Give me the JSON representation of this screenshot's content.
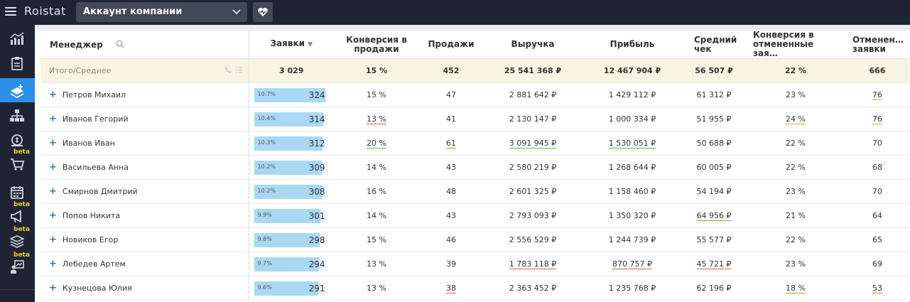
{
  "app": {
    "logo": "Roistat",
    "account": "Аккаунт компании"
  },
  "sidebar": {
    "items": [
      {
        "icon": "analytics-chart-icon",
        "beta": ""
      },
      {
        "icon": "clipboard-icon",
        "beta": ""
      },
      {
        "icon": "layers-add-icon",
        "beta": "",
        "active": true
      },
      {
        "icon": "org-structure-icon",
        "beta": ""
      },
      {
        "icon": "money-bag-icon",
        "beta": ""
      },
      {
        "icon": "cart-icon",
        "beta": "beta"
      },
      {
        "icon": "calendar-icon",
        "beta": ""
      },
      {
        "icon": "megaphone-icon",
        "beta": "beta"
      },
      {
        "icon": "stack-icon",
        "beta": "beta"
      },
      {
        "icon": "person-board-icon",
        "beta": "beta"
      }
    ]
  },
  "table": {
    "columns": [
      "Менеджер",
      "Заявки",
      "Конверсия в продажи",
      "Продажи",
      "Выручка",
      "Прибыль",
      "Средний чек",
      "Конверсия в отмененные зая…",
      "Отменен… заявки"
    ],
    "summary": {
      "label": "Итого/Среднее",
      "requests": "3 029",
      "conv": "15 %",
      "sales": "452",
      "revenue": "25 541 368 ₽",
      "profit": "12 467 904 ₽",
      "avg": "56 507 ₽",
      "cancel_conv": "22 %",
      "cancelled": "666"
    },
    "rows": [
      {
        "name": "Петров Михаил",
        "pct": "10.7%",
        "share": 10.7,
        "requests": "324",
        "conv": "15 %",
        "conv_u": "",
        "sales": "47",
        "sales_u": "",
        "revenue": "2 881 642 ₽",
        "revenue_u": "",
        "profit": "1 429 112 ₽",
        "profit_u": "",
        "avg": "61 312 ₽",
        "avg_u": "",
        "cancel_conv": "23 %",
        "cancel_conv_u": "",
        "cancelled": "76",
        "cancelled_u": "o"
      },
      {
        "name": "Иванов Гегорий",
        "pct": "10.4%",
        "share": 10.4,
        "requests": "314",
        "conv": "13 %",
        "conv_u": "r",
        "sales": "41",
        "sales_u": "",
        "revenue": "2 130 147 ₽",
        "revenue_u": "",
        "profit": "1 000 334 ₽",
        "profit_u": "",
        "avg": "51 955 ₽",
        "avg_u": "",
        "cancel_conv": "24 %",
        "cancel_conv_u": "o",
        "cancelled": "76",
        "cancelled_u": "o"
      },
      {
        "name": "Иванов Иван",
        "pct": "10.3%",
        "share": 10.3,
        "requests": "312",
        "conv": "20 %",
        "conv_u": "g",
        "sales": "61",
        "sales_u": "g",
        "revenue": "3 091 945 ₽",
        "revenue_u": "g",
        "profit": "1 530 051 ₽",
        "profit_u": "g",
        "avg": "50 688 ₽",
        "avg_u": "",
        "cancel_conv": "22 %",
        "cancel_conv_u": "",
        "cancelled": "70",
        "cancelled_u": ""
      },
      {
        "name": "Васильева Анна",
        "pct": "10.2%",
        "share": 10.2,
        "requests": "309",
        "conv": "14 %",
        "conv_u": "",
        "sales": "43",
        "sales_u": "",
        "revenue": "2 580 219 ₽",
        "revenue_u": "",
        "profit": "1 268 644 ₽",
        "profit_u": "",
        "avg": "60 005 ₽",
        "avg_u": "",
        "cancel_conv": "22 %",
        "cancel_conv_u": "",
        "cancelled": "68",
        "cancelled_u": ""
      },
      {
        "name": "Смирнов Дмитрий",
        "pct": "10.2%",
        "share": 10.2,
        "requests": "308",
        "conv": "16 %",
        "conv_u": "",
        "sales": "48",
        "sales_u": "",
        "revenue": "2 601 325 ₽",
        "revenue_u": "",
        "profit": "1 158 460 ₽",
        "profit_u": "",
        "avg": "54 194 ₽",
        "avg_u": "",
        "cancel_conv": "23 %",
        "cancel_conv_u": "",
        "cancelled": "70",
        "cancelled_u": ""
      },
      {
        "name": "Попов Никита",
        "pct": "9.9%",
        "share": 9.9,
        "requests": "301",
        "conv": "14 %",
        "conv_u": "",
        "sales": "43",
        "sales_u": "",
        "revenue": "2 793 093 ₽",
        "revenue_u": "",
        "profit": "1 350 320 ₽",
        "profit_u": "",
        "avg": "64 956 ₽",
        "avg_u": "g",
        "cancel_conv": "21 %",
        "cancel_conv_u": "",
        "cancelled": "64",
        "cancelled_u": ""
      },
      {
        "name": "Новиков Егор",
        "pct": "9.8%",
        "share": 9.8,
        "requests": "298",
        "conv": "15 %",
        "conv_u": "",
        "sales": "46",
        "sales_u": "",
        "revenue": "2 556 529 ₽",
        "revenue_u": "",
        "profit": "1 244 739 ₽",
        "profit_u": "",
        "avg": "55 577 ₽",
        "avg_u": "",
        "cancel_conv": "22 %",
        "cancel_conv_u": "",
        "cancelled": "65",
        "cancelled_u": ""
      },
      {
        "name": "Лебедев Артем",
        "pct": "9.7%",
        "share": 9.7,
        "requests": "294",
        "conv": "13 %",
        "conv_u": "",
        "sales": "39",
        "sales_u": "",
        "revenue": "1 783 118 ₽",
        "revenue_u": "r",
        "profit": "870 757 ₽",
        "profit_u": "r",
        "avg": "45 721 ₽",
        "avg_u": "r",
        "cancel_conv": "23 %",
        "cancel_conv_u": "",
        "cancelled": "69",
        "cancelled_u": ""
      },
      {
        "name": "Кузнецова Юлия",
        "pct": "9.6%",
        "share": 9.6,
        "requests": "291",
        "conv": "13 %",
        "conv_u": "",
        "sales": "38",
        "sales_u": "r",
        "revenue": "2 363 452 ₽",
        "revenue_u": "",
        "profit": "1 235 768 ₽",
        "profit_u": "",
        "avg": "62 196 ₽",
        "avg_u": "",
        "cancel_conv": "18 %",
        "cancel_conv_u": "g",
        "cancelled": "53",
        "cancelled_u": "g"
      }
    ]
  }
}
